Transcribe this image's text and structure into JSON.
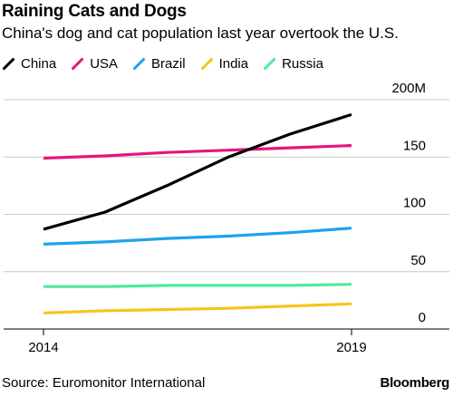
{
  "title": "Raining Cats and Dogs",
  "subtitle": "China's dog and cat population last year overtook the U.S.",
  "source": "Source: Euromonitor International",
  "brand": "Bloomberg",
  "chart_data": {
    "type": "line",
    "x": [
      2014,
      2015,
      2016,
      2017,
      2018,
      2019
    ],
    "x_tick_labels": [
      "2014",
      "2019"
    ],
    "y_tick_labels": [
      "200M",
      "150",
      "100",
      "50",
      "0"
    ],
    "y_ticks": [
      200,
      150,
      100,
      50,
      0
    ],
    "ylim": [
      0,
      200
    ],
    "xlim": [
      2014,
      2020
    ],
    "y_axis_position": "right",
    "legend_position": "top-left",
    "grid": "horizontal",
    "series": [
      {
        "name": "China",
        "color": "#000000",
        "values": [
          87,
          102,
          125,
          150,
          170,
          187
        ]
      },
      {
        "name": "USA",
        "color": "#e6157f",
        "values": [
          149,
          151,
          154,
          156,
          158,
          160
        ]
      },
      {
        "name": "Brazil",
        "color": "#1ea3ec",
        "values": [
          74,
          76,
          79,
          81,
          84,
          88
        ]
      },
      {
        "name": "India",
        "color": "#f5c518",
        "values": [
          14,
          16,
          17,
          18,
          20,
          22
        ]
      },
      {
        "name": "Russia",
        "color": "#4eea9b",
        "values": [
          37,
          37,
          38,
          38,
          38,
          39
        ]
      }
    ]
  }
}
